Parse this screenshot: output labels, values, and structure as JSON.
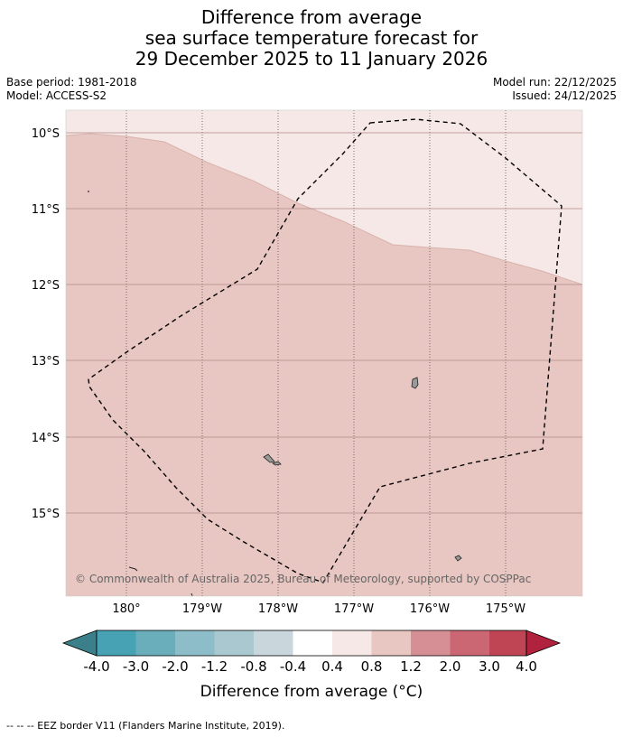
{
  "title": {
    "line1": "Difference from average",
    "line2": "sea surface temperature forecast for",
    "line3": "29 December 2025 to 11 January 2026"
  },
  "meta_left": {
    "base_period": "Base period: 1981-2018",
    "model": "Model: ACCESS-S2"
  },
  "meta_right": {
    "model_run": "Model run: 22/12/2025",
    "issued": "Issued: 24/12/2025"
  },
  "map": {
    "lon_labels": [
      "180°",
      "179°W",
      "178°W",
      "177°W",
      "176°W",
      "175°W"
    ],
    "lat_labels": [
      "10°S",
      "11°S",
      "12°S",
      "13°S",
      "14°S",
      "15°S"
    ],
    "copyright": "© Commonwealth of Australia 2025, Bureau of Meteorology, supported by COSPPac",
    "colors": {
      "band_0_4_to_0_8": "#f5e8e6",
      "band_0_8_to_1_2": "#e8c6c1",
      "land": "#999999"
    }
  },
  "colorbar": {
    "tick_labels": [
      "-4.0",
      "-3.0",
      "-2.0",
      "-1.2",
      "-0.8",
      "-0.4",
      "0.4",
      "0.8",
      "1.2",
      "2.0",
      "3.0",
      "4.0"
    ],
    "colors": [
      "#3a7f89",
      "#47a2b4",
      "#6aadbb",
      "#8dbdc8",
      "#a9c8cf",
      "#c9d7dc",
      "#ffffff",
      "#f5e8e6",
      "#e8c6c1",
      "#d78f96",
      "#cb6673",
      "#bf4555",
      "#b0223e"
    ],
    "label": "Difference from average (°C)"
  },
  "footnote": "--  --  -- EEZ border V11 (Flanders Marine Institute, 2019)."
}
